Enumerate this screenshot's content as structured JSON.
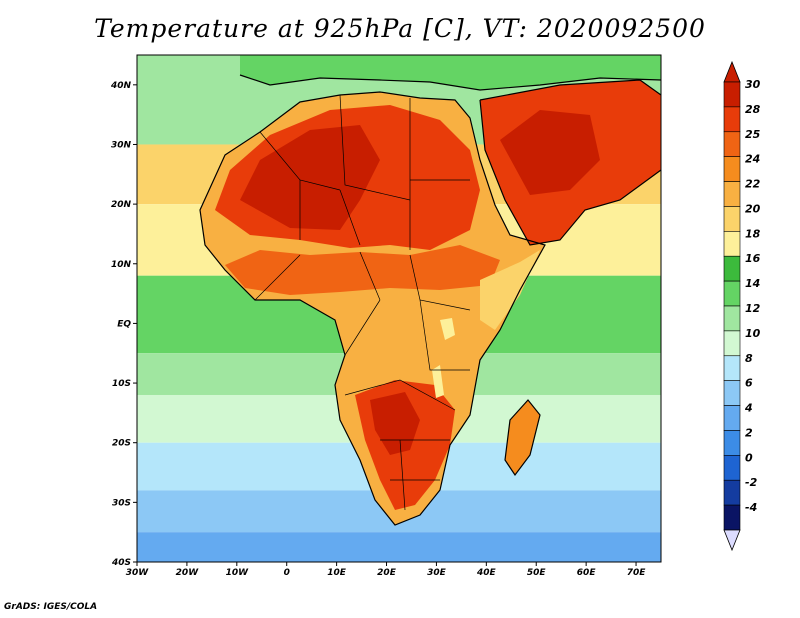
{
  "title": "Temperature at 925hPa [C], VT: 2020092500",
  "credit": "GrADS: IGES/COLA",
  "lat_ticks": [
    "40N",
    "30N",
    "20N",
    "10N",
    "EQ",
    "10S",
    "20S",
    "30S",
    "40S"
  ],
  "lon_ticks": [
    "30W",
    "20W",
    "10W",
    "0",
    "10E",
    "20E",
    "30E",
    "40E",
    "50E",
    "60E",
    "70E"
  ],
  "colorbar": {
    "labels": [
      "30",
      "28",
      "25",
      "24",
      "22",
      "20",
      "18",
      "16",
      "14",
      "12",
      "10",
      "8",
      "6",
      "4",
      "2",
      "0",
      "-2",
      "-4"
    ],
    "colors": [
      "#c81e00",
      "#e83c0a",
      "#f06414",
      "#f58c1e",
      "#f8b042",
      "#fbd36a",
      "#fdf09a",
      "#3cba3c",
      "#64d464",
      "#a0e6a0",
      "#d2f8d2",
      "#b4e6fa",
      "#8cc8f5",
      "#64aaf0",
      "#3c8ce6",
      "#1e64d2",
      "#143ca0",
      "#0a1464"
    ]
  },
  "map": {
    "lon_range": [
      -30,
      75
    ],
    "lat_range": [
      -40,
      45
    ],
    "ocean_bands": [
      {
        "lat": [
          30,
          45
        ],
        "color": "#a0e6a0"
      },
      {
        "lat": [
          20,
          30
        ],
        "color": "#fbd36a"
      },
      {
        "lat": [
          8,
          20
        ],
        "color": "#fdf09a"
      },
      {
        "lat": [
          -5,
          8
        ],
        "color": "#64d464"
      },
      {
        "lat": [
          -12,
          -5
        ],
        "color": "#a0e6a0"
      },
      {
        "lat": [
          -20,
          -12
        ],
        "color": "#d2f8d2"
      },
      {
        "lat": [
          -28,
          -20
        ],
        "color": "#b4e6fa"
      },
      {
        "lat": [
          -35,
          -28
        ],
        "color": "#8cc8f5"
      },
      {
        "lat": [
          -40,
          -35
        ],
        "color": "#64aaf0"
      }
    ]
  }
}
